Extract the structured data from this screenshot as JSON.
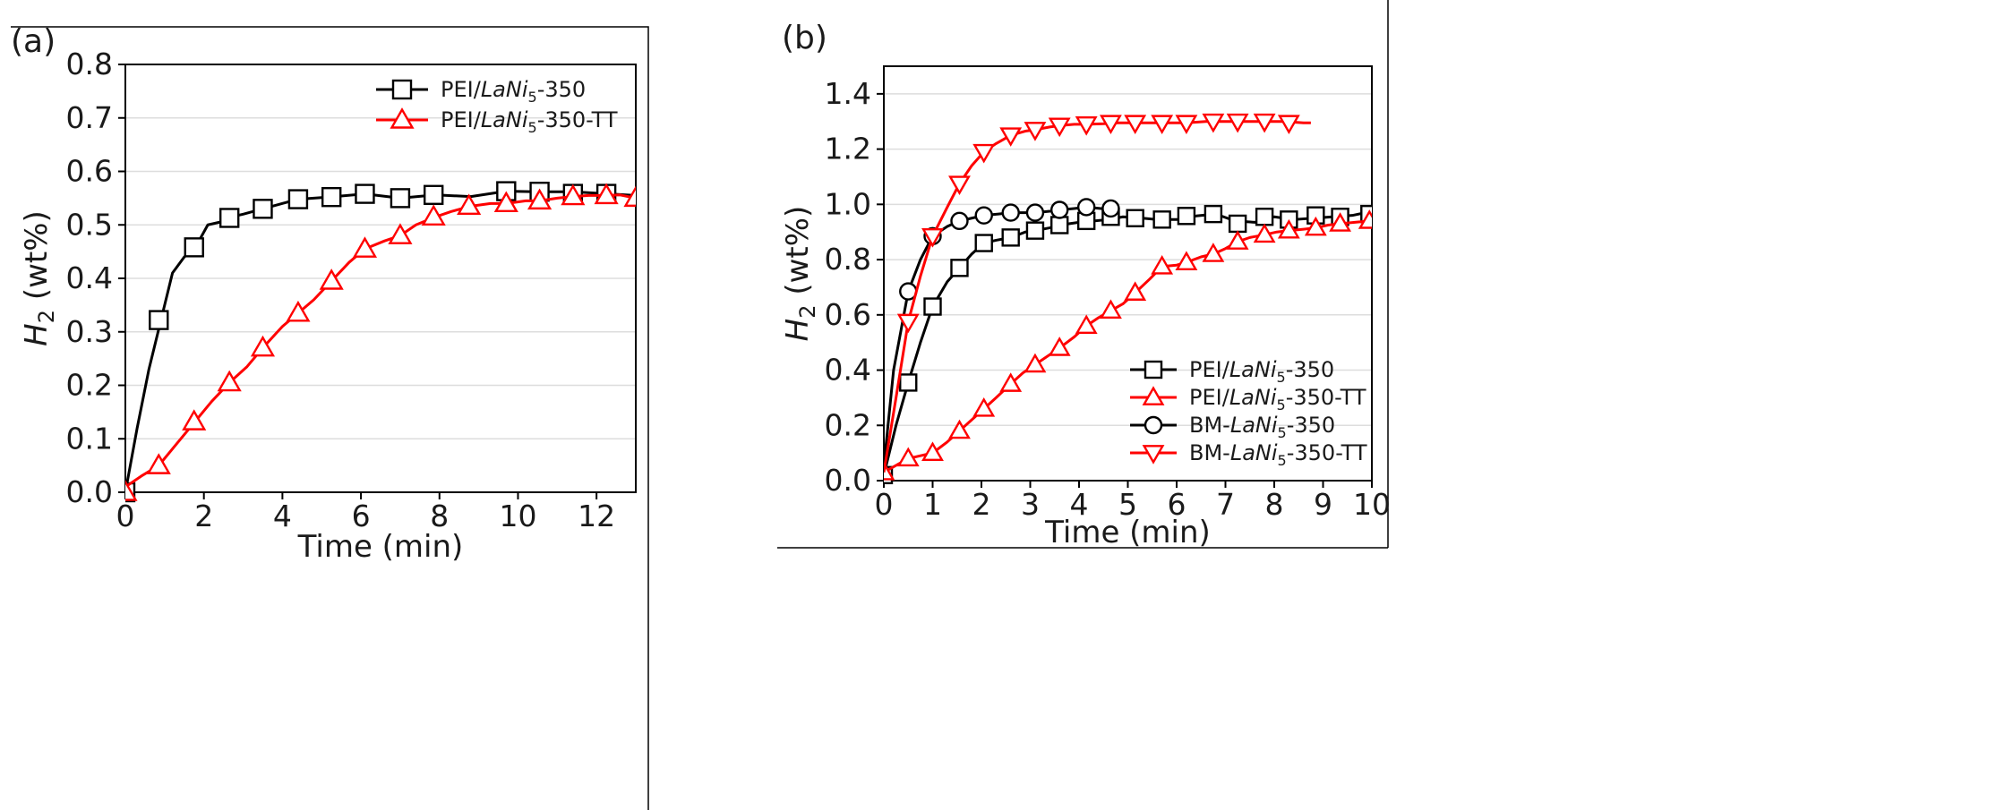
{
  "chart_data": [
    {
      "panel": "(a)",
      "type": "line",
      "xlabel": "Time (min)",
      "ylabel_main": "H",
      "ylabel_sub": "2",
      "ylabel_rest": " (wt%)",
      "xlim": [
        0,
        13
      ],
      "ylim": [
        0,
        0.8
      ],
      "xticks": [
        "0",
        "2",
        "4",
        "6",
        "8",
        "10",
        "12"
      ],
      "xtick_values": [
        0,
        2,
        4,
        6,
        8,
        10,
        12
      ],
      "yticks": [
        "0.0",
        "0.1",
        "0.2",
        "0.3",
        "0.4",
        "0.5",
        "0.6",
        "0.7",
        "0.8"
      ],
      "ytick_values": [
        0,
        0.1,
        0.2,
        0.3,
        0.4,
        0.5,
        0.6,
        0.7,
        0.8
      ],
      "grid": "horizontal",
      "legend_position": "top-right",
      "series": [
        {
          "legend": {
            "pre": "PEI/",
            "ital": "LaNi",
            "sub": "5",
            "post": "-350"
          },
          "color": "#000000",
          "marker": "square",
          "x": [
            0,
            0.3,
            0.6,
            0.9,
            1.2,
            1.5,
            1.8,
            2.1,
            2.4,
            2.7,
            3.0,
            3.5,
            4.0,
            4.4,
            5.2,
            6.1,
            7.0,
            7.9,
            8.8,
            9.7,
            10.5,
            11.4,
            12.3,
            13.0
          ],
          "y": [
            0,
            0.12,
            0.23,
            0.32,
            0.41,
            0.44,
            0.46,
            0.5,
            0.505,
            0.515,
            0.52,
            0.53,
            0.54,
            0.548,
            0.552,
            0.558,
            0.55,
            0.556,
            0.553,
            0.563,
            0.562,
            0.562,
            0.558,
            0.555
          ],
          "marker_x": [
            0,
            0.85,
            1.75,
            2.65,
            3.5,
            4.4,
            5.25,
            6.1,
            7.0,
            7.85,
            9.7,
            10.55,
            11.4,
            12.25
          ],
          "marker_y": [
            0,
            0.322,
            0.458,
            0.513,
            0.53,
            0.548,
            0.552,
            0.558,
            0.55,
            0.556,
            0.563,
            0.562,
            0.558,
            0.558
          ]
        },
        {
          "legend": {
            "pre": "PEI/",
            "ital": "LaNi",
            "sub": "5",
            "post": "-350-TT"
          },
          "color": "#ff0000",
          "marker": "triangle-up",
          "x": [
            0,
            0.4,
            0.85,
            1.3,
            1.75,
            2.2,
            2.65,
            3.1,
            3.5,
            4.0,
            4.4,
            4.8,
            5.25,
            5.7,
            6.1,
            6.6,
            7.0,
            7.4,
            7.9,
            8.3,
            8.8,
            9.3,
            9.7,
            10.2,
            10.55,
            11.0,
            11.4,
            11.8,
            12.25,
            12.6,
            13.0
          ],
          "y": [
            0.01,
            0.03,
            0.05,
            0.09,
            0.13,
            0.17,
            0.205,
            0.235,
            0.27,
            0.31,
            0.335,
            0.36,
            0.395,
            0.43,
            0.455,
            0.47,
            0.48,
            0.5,
            0.515,
            0.525,
            0.535,
            0.54,
            0.54,
            0.545,
            0.545,
            0.55,
            0.553,
            0.555,
            0.555,
            0.556,
            0.55
          ],
          "marker_x": [
            0,
            0.85,
            1.75,
            2.65,
            3.5,
            4.4,
            5.25,
            6.1,
            7.0,
            7.85,
            8.75,
            9.7,
            10.55,
            11.4,
            12.25,
            13.0
          ],
          "marker_y": [
            0,
            0.05,
            0.132,
            0.205,
            0.27,
            0.335,
            0.395,
            0.455,
            0.48,
            0.515,
            0.535,
            0.54,
            0.545,
            0.553,
            0.555,
            0.55
          ]
        }
      ]
    },
    {
      "panel": "(b)",
      "type": "line",
      "xlabel": "Time (min)",
      "ylabel_main": "H",
      "ylabel_sub": "2",
      "ylabel_rest": " (wt%)",
      "xlim": [
        0,
        10
      ],
      "ylim": [
        0,
        1.5
      ],
      "xticks": [
        "0",
        "1",
        "2",
        "3",
        "4",
        "5",
        "6",
        "7",
        "8",
        "9",
        "10"
      ],
      "xtick_values": [
        0,
        1,
        2,
        3,
        4,
        5,
        6,
        7,
        8,
        9,
        10
      ],
      "yticks": [
        "0.0",
        "0.2",
        "0.4",
        "0.6",
        "0.8",
        "1.0",
        "1.2",
        "1.4"
      ],
      "ytick_values": [
        0,
        0.2,
        0.4,
        0.6,
        0.8,
        1.0,
        1.2,
        1.4
      ],
      "grid": "horizontal",
      "legend_position": "bottom-right",
      "series": [
        {
          "legend": {
            "pre": "PEI/",
            "ital": "LaNi",
            "sub": "5",
            "post": "-350"
          },
          "color": "#000000",
          "marker": "square",
          "x": [
            0,
            0.25,
            0.5,
            0.75,
            1.0,
            1.3,
            1.55,
            1.8,
            2.05,
            2.3,
            2.6,
            2.9,
            3.1,
            3.4,
            3.6,
            4.0,
            4.3,
            4.6,
            4.9,
            5.3,
            5.6,
            6.0,
            6.4,
            6.8,
            7.2,
            7.6,
            8.0,
            8.4,
            8.8,
            9.2,
            9.6,
            10.0
          ],
          "y": [
            0.02,
            0.2,
            0.355,
            0.5,
            0.63,
            0.72,
            0.77,
            0.82,
            0.86,
            0.87,
            0.88,
            0.9,
            0.905,
            0.915,
            0.925,
            0.935,
            0.94,
            0.945,
            0.955,
            0.95,
            0.945,
            0.945,
            0.958,
            0.965,
            0.94,
            0.935,
            0.955,
            0.945,
            0.95,
            0.955,
            0.96,
            0.975
          ],
          "marker_x": [
            0,
            0.5,
            1.0,
            1.55,
            2.05,
            2.6,
            3.1,
            3.6,
            4.15,
            4.65,
            5.15,
            5.7,
            6.2,
            6.75,
            7.25,
            7.8,
            8.3,
            8.85,
            9.35,
            9.95
          ],
          "marker_y": [
            0.02,
            0.355,
            0.63,
            0.77,
            0.86,
            0.88,
            0.905,
            0.925,
            0.94,
            0.955,
            0.95,
            0.945,
            0.958,
            0.965,
            0.93,
            0.955,
            0.945,
            0.96,
            0.955,
            0.965
          ]
        },
        {
          "legend": {
            "pre": "PEI/",
            "ital": "LaNi",
            "sub": "5",
            "post": "-350-TT"
          },
          "color": "#ff0000",
          "marker": "triangle-up",
          "x": [
            0,
            0.3,
            0.5,
            0.75,
            1.0,
            1.3,
            1.55,
            1.8,
            2.05,
            2.3,
            2.6,
            2.85,
            3.1,
            3.35,
            3.6,
            3.9,
            4.15,
            4.4,
            4.65,
            4.9,
            5.15,
            5.45,
            5.7,
            6.0,
            6.2,
            6.5,
            6.75,
            7.0,
            7.25,
            7.5,
            7.8,
            8.05,
            8.3,
            8.6,
            8.85,
            9.1,
            9.35,
            9.65,
            9.95
          ],
          "y": [
            0.03,
            0.06,
            0.08,
            0.09,
            0.1,
            0.14,
            0.18,
            0.22,
            0.26,
            0.3,
            0.35,
            0.39,
            0.42,
            0.45,
            0.48,
            0.52,
            0.56,
            0.59,
            0.615,
            0.64,
            0.68,
            0.73,
            0.775,
            0.78,
            0.79,
            0.81,
            0.82,
            0.84,
            0.865,
            0.88,
            0.89,
            0.9,
            0.905,
            0.91,
            0.915,
            0.925,
            0.93,
            0.935,
            0.94
          ],
          "marker_x": [
            0,
            0.5,
            1.0,
            1.55,
            2.05,
            2.6,
            3.1,
            3.6,
            4.15,
            4.65,
            5.15,
            5.7,
            6.2,
            6.75,
            7.25,
            7.8,
            8.3,
            8.85,
            9.35,
            9.95
          ],
          "marker_y": [
            0.03,
            0.08,
            0.1,
            0.18,
            0.26,
            0.35,
            0.42,
            0.48,
            0.56,
            0.615,
            0.68,
            0.775,
            0.79,
            0.82,
            0.865,
            0.89,
            0.905,
            0.915,
            0.93,
            0.94
          ]
        },
        {
          "legend": {
            "pre": "BM-",
            "ital": "LaNi",
            "sub": "5",
            "post": "-350"
          },
          "color": "#000000",
          "marker": "circle",
          "x": [
            0,
            0.2,
            0.5,
            0.75,
            1.0,
            1.3,
            1.55,
            1.8,
            2.05,
            2.35,
            2.6,
            2.9,
            3.1,
            3.4,
            3.6,
            3.9,
            4.15,
            4.45,
            4.7
          ],
          "y": [
            0.05,
            0.4,
            0.685,
            0.8,
            0.885,
            0.92,
            0.94,
            0.95,
            0.96,
            0.965,
            0.97,
            0.97,
            0.97,
            0.975,
            0.98,
            0.985,
            0.99,
            0.985,
            0.985
          ],
          "marker_x": [
            0.5,
            1.0,
            1.55,
            2.05,
            2.6,
            3.1,
            3.6,
            4.15,
            4.65
          ],
          "marker_y": [
            0.685,
            0.885,
            0.94,
            0.96,
            0.97,
            0.97,
            0.98,
            0.99,
            0.985
          ]
        },
        {
          "legend": {
            "pre": "BM-",
            "ital": "LaNi",
            "sub": "5",
            "post": "-350-TT"
          },
          "color": "#ff0000",
          "marker": "triangle-down",
          "x": [
            0,
            0.25,
            0.5,
            0.75,
            1.0,
            1.3,
            1.55,
            1.8,
            2.05,
            2.3,
            2.6,
            2.9,
            3.1,
            3.4,
            3.6,
            3.9,
            4.15,
            4.5,
            4.8,
            5.15,
            5.5,
            5.8,
            6.2,
            6.6,
            7.0,
            7.4,
            7.8,
            8.2,
            8.6,
            8.75
          ],
          "y": [
            0.03,
            0.3,
            0.575,
            0.74,
            0.885,
            0.99,
            1.075,
            1.14,
            1.19,
            1.22,
            1.25,
            1.265,
            1.27,
            1.28,
            1.285,
            1.29,
            1.29,
            1.292,
            1.295,
            1.295,
            1.295,
            1.295,
            1.295,
            1.3,
            1.3,
            1.3,
            1.3,
            1.3,
            1.295,
            1.295
          ],
          "marker_x": [
            0.5,
            1.0,
            1.55,
            2.05,
            2.6,
            3.1,
            3.6,
            4.15,
            4.65,
            5.15,
            5.7,
            6.2,
            6.75,
            7.25,
            7.8,
            8.3
          ],
          "marker_y": [
            0.575,
            0.885,
            1.075,
            1.19,
            1.25,
            1.27,
            1.285,
            1.29,
            1.295,
            1.295,
            1.295,
            1.295,
            1.3,
            1.3,
            1.3,
            1.295
          ]
        }
      ]
    }
  ]
}
